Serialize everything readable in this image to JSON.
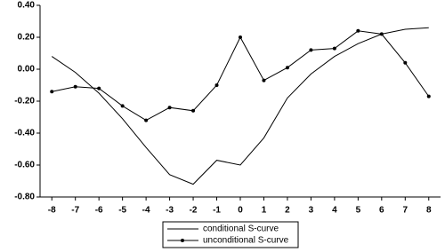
{
  "chart_data": {
    "type": "line",
    "x": [
      -8,
      -7,
      -6,
      -5,
      -4,
      -3,
      -2,
      -1,
      0,
      1,
      2,
      3,
      4,
      5,
      6,
      7,
      8
    ],
    "xlim": [
      -8.5,
      8.5
    ],
    "xticks": [
      -8,
      -7,
      -6,
      -5,
      -4,
      -3,
      -2,
      -1,
      0,
      1,
      2,
      3,
      4,
      5,
      6,
      7,
      8
    ],
    "ylim": [
      -0.8,
      0.4
    ],
    "yticks": [
      {
        "value": 0.4,
        "label": "0.40"
      },
      {
        "value": 0.2,
        "label": "0.20"
      },
      {
        "value": 0,
        "label": "0.00"
      },
      {
        "value": -0.2,
        "label": "-0.20"
      },
      {
        "value": -0.4,
        "label": "-0.40"
      },
      {
        "value": -0.6,
        "label": "-0.60"
      },
      {
        "value": -0.8,
        "label": "-0.80"
      }
    ],
    "series": [
      {
        "name": "conditional S-curve",
        "color": "#000000",
        "markers": false,
        "values": [
          0.08,
          -0.02,
          -0.15,
          -0.31,
          -0.49,
          -0.66,
          -0.72,
          -0.57,
          -0.6,
          -0.43,
          -0.18,
          -0.03,
          0.08,
          0.16,
          0.22,
          0.25,
          0.26
        ]
      },
      {
        "name": "unconditional S-curve",
        "color": "#000000",
        "markers": true,
        "values": [
          -0.14,
          -0.11,
          -0.12,
          -0.23,
          -0.32,
          -0.24,
          -0.26,
          -0.1,
          0.2,
          -0.07,
          0.01,
          0.12,
          0.13,
          0.24,
          0.22,
          0.04,
          -0.17
        ]
      }
    ]
  }
}
